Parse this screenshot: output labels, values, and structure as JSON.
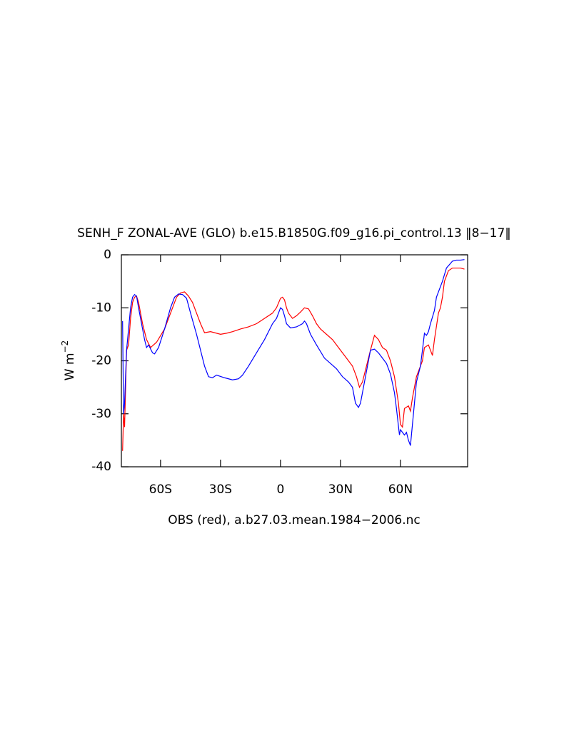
{
  "chart_data": {
    "type": "line",
    "title": "SENH_F ZONAL-AVE (GLO) b.e15.B1850G.f09_g16.pi_control.13 ‖8−17‖",
    "xlabel": "OBS (red), a.b27.03.mean.1984−2006.nc",
    "ylabel": "W m",
    "ylabel_sup": "−2",
    "xlim": [
      -79.6,
      93.6
    ],
    "ylim": [
      -40,
      0
    ],
    "xticks": [
      {
        "value": -60,
        "label": "60S"
      },
      {
        "value": -30,
        "label": "30S"
      },
      0,
      {
        "value": 30,
        "label": "30N"
      },
      {
        "value": 60,
        "label": "60N"
      }
    ],
    "yticks": [
      0,
      -10,
      -20,
      -30,
      -40
    ],
    "grid": false,
    "series": [
      {
        "color": "#ff0000",
        "x": [
          -79,
          -78.5,
          -78,
          -77,
          -76,
          -75,
          -74,
          -73,
          -72,
          -71,
          -70,
          -69,
          -67,
          -65,
          -62,
          -58,
          -55,
          -52,
          -50,
          -48,
          -46,
          -44,
          -42,
          -40,
          -38,
          -35,
          -32,
          -30,
          -27,
          -24,
          -20,
          -16,
          -12,
          -8,
          -4,
          -2,
          0,
          1,
          2,
          3,
          4,
          6,
          8,
          10,
          12,
          14,
          16,
          18,
          20,
          23,
          26,
          30,
          33,
          36,
          38,
          39.5,
          41,
          43,
          45,
          47,
          49,
          51,
          53,
          55,
          57,
          59,
          60,
          61,
          62,
          64,
          65,
          66,
          68,
          70,
          71,
          72,
          74,
          75,
          76,
          77,
          79,
          80,
          81,
          82,
          84,
          86,
          90,
          92
        ],
        "values": [
          -37,
          -30,
          -32.5,
          -18,
          -17,
          -12,
          -9,
          -8,
          -7.8,
          -9,
          -11,
          -13,
          -16,
          -17.5,
          -16.5,
          -14,
          -11,
          -8,
          -7.2,
          -7,
          -7.8,
          -9,
          -11,
          -13,
          -14.7,
          -14.5,
          -14.8,
          -15,
          -14.8,
          -14.5,
          -14,
          -13.6,
          -13,
          -12,
          -11,
          -10,
          -8.2,
          -8,
          -8.5,
          -10,
          -11,
          -12,
          -11.5,
          -10.8,
          -10,
          -10.2,
          -11.5,
          -13,
          -14,
          -15,
          -16,
          -18,
          -19.5,
          -21,
          -23,
          -25,
          -24,
          -21,
          -18,
          -15.2,
          -16,
          -17.5,
          -18,
          -20,
          -23,
          -28,
          -32,
          -32.5,
          -29,
          -28.5,
          -29.5,
          -27,
          -23,
          -21,
          -20,
          -17.5,
          -17,
          -18,
          -19,
          -16,
          -11,
          -10,
          -8,
          -5,
          -3,
          -2.5,
          -2.5,
          -2.7
        ]
      },
      {
        "color": "#0000ff",
        "x": [
          -79,
          -78.5,
          -78,
          -77,
          -76,
          -75,
          -74,
          -73,
          -72,
          -71,
          -70,
          -69,
          -68,
          -67,
          -66,
          -64,
          -63,
          -61,
          -58,
          -55,
          -53,
          -51,
          -49,
          -47,
          -45,
          -42,
          -40,
          -38,
          -36,
          -34,
          -32,
          -28,
          -24,
          -21,
          -19,
          -16,
          -12,
          -8,
          -4,
          -2,
          0,
          1,
          2,
          3,
          5,
          8,
          11,
          12,
          13,
          15,
          18,
          22,
          25,
          28,
          31,
          34,
          36,
          37.5,
          39,
          40,
          42,
          44,
          45,
          47,
          49,
          51,
          53,
          55,
          57,
          58,
          59.5,
          60,
          62,
          63,
          64,
          65,
          66,
          67,
          68,
          70,
          71,
          72,
          73,
          74,
          75,
          77,
          78,
          80,
          81,
          83,
          86,
          88,
          90,
          92
        ],
        "values": [
          -12.5,
          -30,
          -28,
          -18,
          -14,
          -10,
          -8,
          -7.5,
          -7.8,
          -10,
          -12,
          -14,
          -16,
          -17.5,
          -17,
          -18.5,
          -18.7,
          -17.5,
          -14,
          -10,
          -8,
          -7.4,
          -7.5,
          -8.2,
          -11,
          -15,
          -18,
          -21,
          -23,
          -23.2,
          -22.7,
          -23.2,
          -23.6,
          -23.4,
          -22.7,
          -21,
          -18.5,
          -16,
          -13,
          -12,
          -10,
          -10.3,
          -11.5,
          -13,
          -13.8,
          -13.6,
          -13,
          -12.5,
          -13,
          -15,
          -17,
          -19.5,
          -20.5,
          -21.5,
          -23,
          -24,
          -25,
          -28,
          -28.8,
          -28,
          -24,
          -20,
          -18,
          -17.8,
          -18.5,
          -19.5,
          -20.5,
          -22.5,
          -26,
          -29,
          -34,
          -33,
          -34,
          -33.5,
          -35,
          -36,
          -32,
          -28,
          -24,
          -21,
          -18,
          -14.8,
          -15.2,
          -14.5,
          -13,
          -10.5,
          -8,
          -6,
          -5,
          -2.5,
          -1.2,
          -1,
          -1,
          -0.9
        ]
      }
    ]
  }
}
